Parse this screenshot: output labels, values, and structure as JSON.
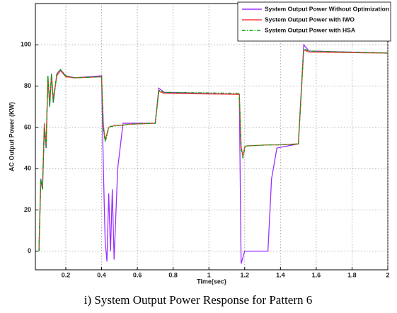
{
  "chart_data": {
    "type": "line",
    "caption": "i) System Output Power Response for Pattern 6",
    "x_label": "Time(sec)",
    "y_label": "AC Output Power (KW)",
    "x": [
      0.05,
      0.06,
      0.07,
      0.08,
      0.09,
      0.1,
      0.11,
      0.12,
      0.13,
      0.15,
      0.17,
      0.2,
      0.25,
      0.4,
      0.41,
      0.42,
      0.43,
      0.44,
      0.45,
      0.46,
      0.47,
      0.49,
      0.52,
      0.55,
      0.7,
      0.72,
      0.75,
      1.17,
      1.18,
      1.19,
      1.2,
      1.21,
      1.33,
      1.35,
      1.38,
      1.5,
      1.53,
      1.56,
      2
    ],
    "series": [
      {
        "name": "System Output Power Without Optimization",
        "color": "#9b30ff",
        "dash": "solid",
        "values": [
          0,
          35,
          30,
          60,
          50,
          85,
          70,
          86,
          72,
          86,
          88,
          85,
          84,
          85,
          40,
          5,
          -5,
          28,
          0,
          30,
          -4,
          40,
          62,
          62,
          62,
          79,
          77,
          76,
          -6,
          -3,
          0,
          0,
          0,
          35,
          50,
          52,
          100,
          97,
          96
        ]
      },
      {
        "name": "System Output Power with IWO",
        "color": "#ff3b3b",
        "dash": "solid",
        "values": [
          0,
          33,
          32,
          62,
          52,
          84,
          72,
          85,
          74,
          85,
          87.5,
          84.5,
          84,
          84.5,
          61,
          54,
          57,
          60,
          60.5,
          60.5,
          61,
          61,
          61,
          61.5,
          62,
          77.5,
          76.5,
          76,
          51,
          46,
          50.5,
          51,
          51.5,
          51.5,
          51.5,
          52,
          97.5,
          96.5,
          96
        ]
      },
      {
        "name": "System Output Power with HSA",
        "color": "#00a000",
        "dash": "dashdot",
        "values": [
          0,
          35,
          30,
          60,
          50,
          85,
          70,
          86,
          72,
          86,
          88,
          85,
          84,
          84.5,
          60,
          53,
          56,
          60,
          60.5,
          60.5,
          60.5,
          61,
          61,
          61.5,
          62,
          78,
          77,
          76.5,
          50,
          45,
          50,
          51,
          51.5,
          51.5,
          51.5,
          52,
          98,
          97,
          96
        ]
      }
    ],
    "xlim": [
      0.03,
      2
    ],
    "ylim": [
      -9,
      120
    ],
    "xticks": [
      0.2,
      0.4,
      0.6,
      0.8,
      1,
      1.2,
      1.4,
      1.6,
      1.8,
      2
    ],
    "yticks": [
      0,
      20,
      40,
      60,
      80,
      100
    ],
    "grid": true,
    "legend": "upper right"
  }
}
